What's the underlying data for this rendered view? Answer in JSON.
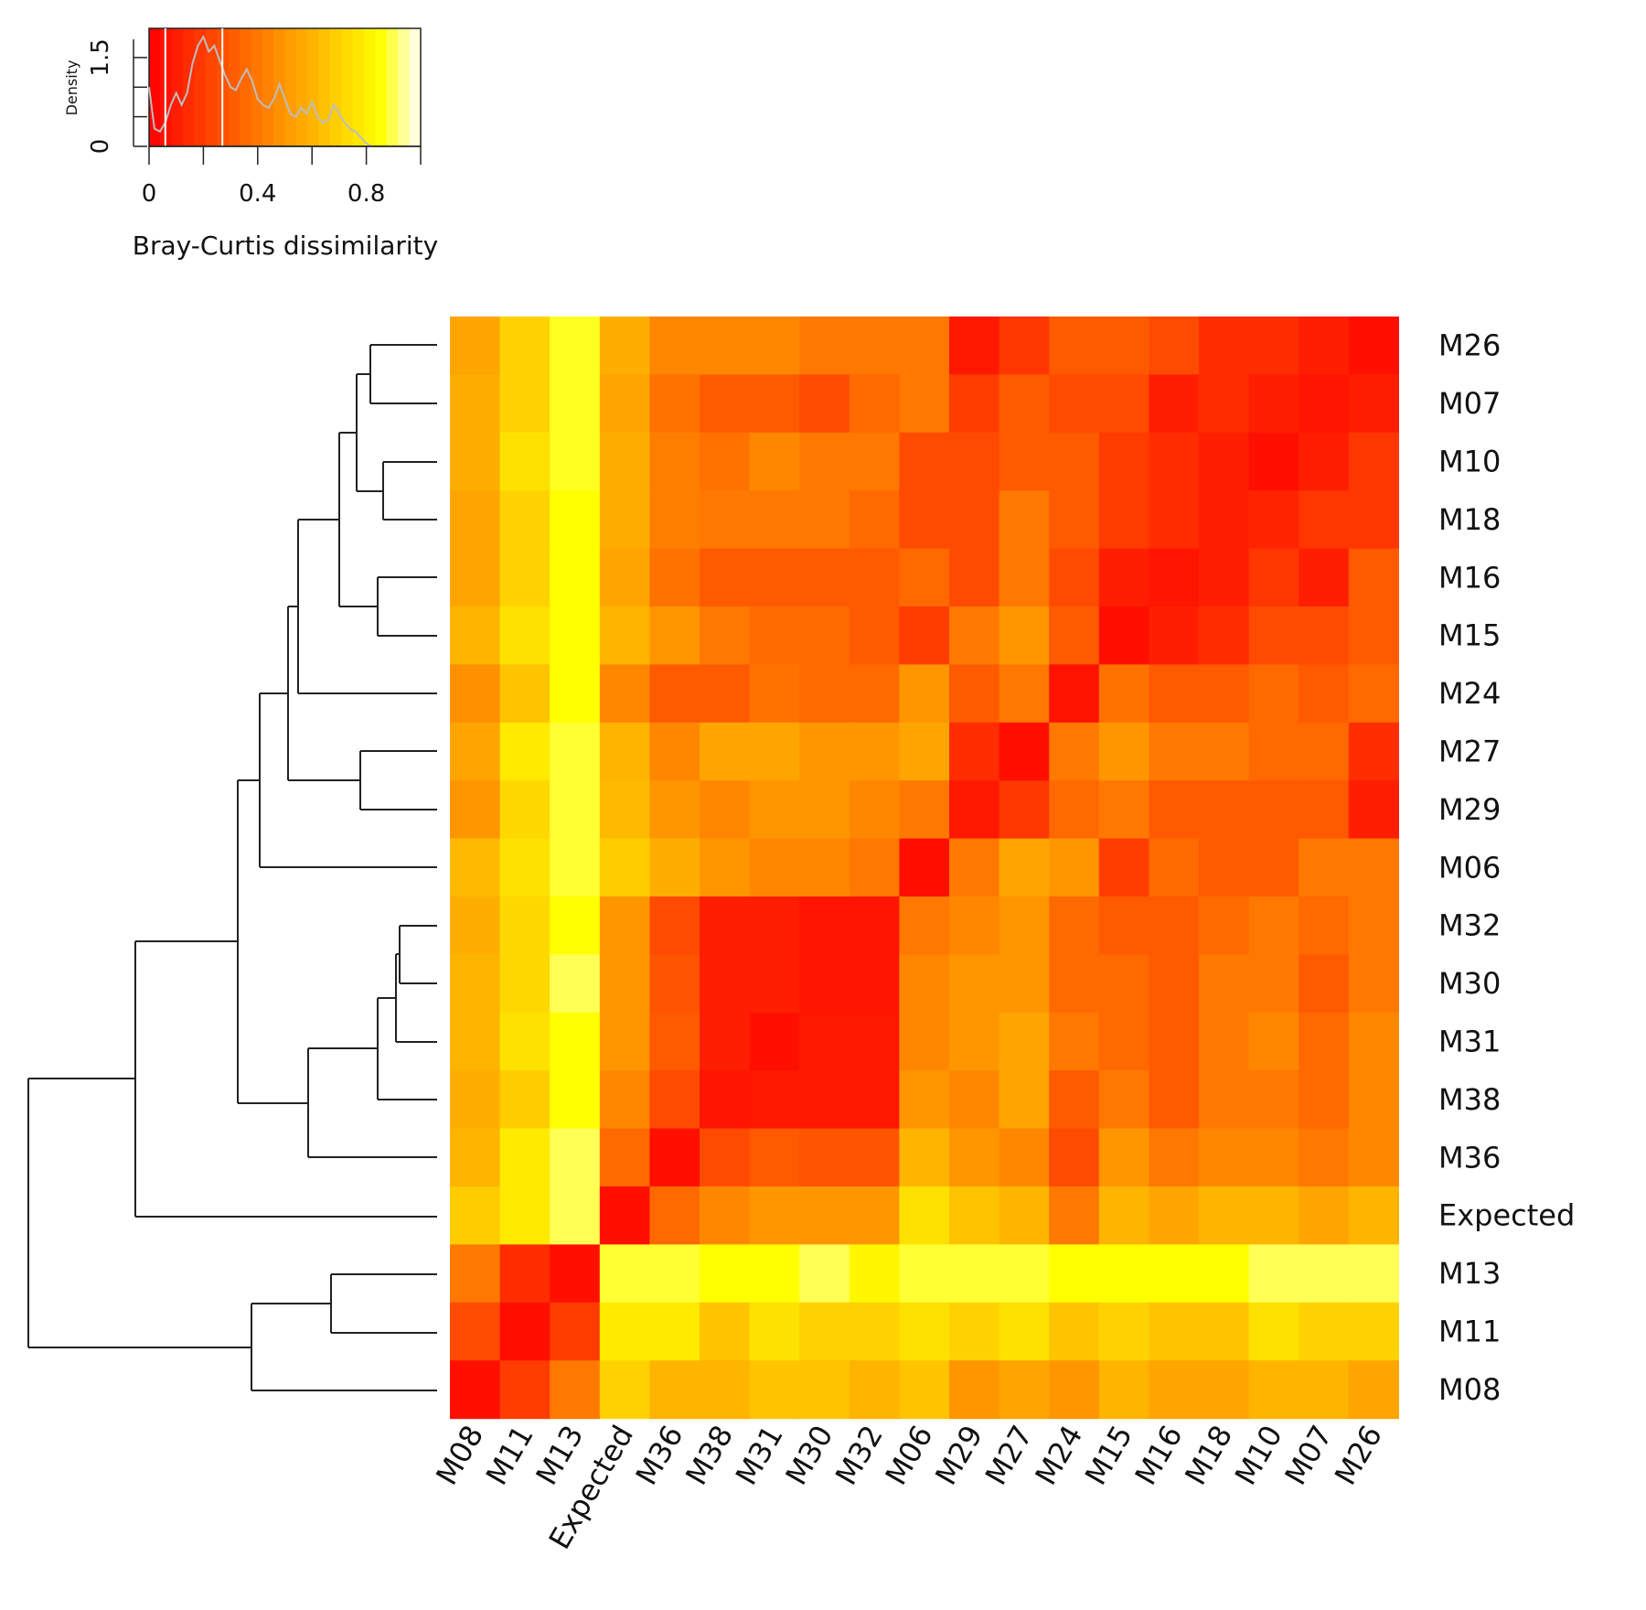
{
  "chart_data": {
    "type": "heatmap",
    "title": "",
    "color_key": {
      "label": "Bray-Curtis dissimilarity",
      "density_label": "Density",
      "ticks": [
        "0",
        "0.4",
        "0.8"
      ],
      "density_ticks": [
        "0",
        "1.5"
      ],
      "range": [
        0,
        1
      ],
      "palette": "heat (red to yellow to white)",
      "cut_lines": [
        0.06,
        0.27
      ]
    },
    "rows": [
      "M26",
      "M07",
      "M10",
      "M18",
      "M16",
      "M15",
      "M24",
      "M27",
      "M29",
      "M06",
      "M32",
      "M30",
      "M31",
      "M38",
      "M36",
      "Expected",
      "M13",
      "M11",
      "M08"
    ],
    "columns": [
      "M08",
      "M11",
      "M13",
      "Expected",
      "M36",
      "M38",
      "M31",
      "M30",
      "M32",
      "M06",
      "M29",
      "M27",
      "M24",
      "M15",
      "M16",
      "M18",
      "M10",
      "M07",
      "M26"
    ],
    "values": [
      [
        0.55,
        0.7,
        0.87,
        0.58,
        0.45,
        0.45,
        0.45,
        0.4,
        0.4,
        0.4,
        0.08,
        0.18,
        0.3,
        0.3,
        0.25,
        0.15,
        0.15,
        0.1,
        0.05
      ],
      [
        0.58,
        0.7,
        0.87,
        0.55,
        0.38,
        0.3,
        0.3,
        0.25,
        0.35,
        0.4,
        0.2,
        0.3,
        0.25,
        0.25,
        0.1,
        0.15,
        0.1,
        0.07,
        0.1
      ],
      [
        0.58,
        0.75,
        0.87,
        0.58,
        0.42,
        0.38,
        0.45,
        0.4,
        0.4,
        0.25,
        0.25,
        0.3,
        0.3,
        0.2,
        0.15,
        0.1,
        0.05,
        0.1,
        0.18
      ],
      [
        0.55,
        0.7,
        0.85,
        0.58,
        0.42,
        0.4,
        0.4,
        0.4,
        0.35,
        0.25,
        0.25,
        0.4,
        0.3,
        0.2,
        0.15,
        0.1,
        0.12,
        0.18,
        0.18
      ],
      [
        0.55,
        0.7,
        0.85,
        0.55,
        0.38,
        0.3,
        0.3,
        0.3,
        0.3,
        0.35,
        0.25,
        0.4,
        0.25,
        0.1,
        0.07,
        0.1,
        0.18,
        0.1,
        0.3
      ],
      [
        0.6,
        0.75,
        0.85,
        0.6,
        0.5,
        0.4,
        0.35,
        0.35,
        0.3,
        0.2,
        0.4,
        0.5,
        0.3,
        0.05,
        0.1,
        0.15,
        0.25,
        0.25,
        0.3
      ],
      [
        0.48,
        0.65,
        0.85,
        0.45,
        0.3,
        0.3,
        0.38,
        0.35,
        0.35,
        0.5,
        0.3,
        0.4,
        0.06,
        0.38,
        0.3,
        0.3,
        0.35,
        0.3,
        0.35
      ],
      [
        0.55,
        0.78,
        0.88,
        0.6,
        0.45,
        0.55,
        0.55,
        0.5,
        0.5,
        0.55,
        0.15,
        0.05,
        0.4,
        0.5,
        0.4,
        0.4,
        0.35,
        0.35,
        0.15
      ],
      [
        0.5,
        0.72,
        0.88,
        0.62,
        0.5,
        0.45,
        0.5,
        0.5,
        0.45,
        0.4,
        0.08,
        0.18,
        0.35,
        0.4,
        0.3,
        0.3,
        0.3,
        0.3,
        0.1
      ],
      [
        0.62,
        0.75,
        0.88,
        0.68,
        0.58,
        0.5,
        0.45,
        0.45,
        0.4,
        0.05,
        0.4,
        0.55,
        0.5,
        0.2,
        0.35,
        0.3,
        0.3,
        0.4,
        0.4
      ],
      [
        0.58,
        0.72,
        0.85,
        0.5,
        0.25,
        0.1,
        0.1,
        0.07,
        0.07,
        0.4,
        0.45,
        0.5,
        0.35,
        0.3,
        0.3,
        0.35,
        0.4,
        0.35,
        0.4
      ],
      [
        0.6,
        0.72,
        0.9,
        0.5,
        0.28,
        0.1,
        0.1,
        0.07,
        0.07,
        0.45,
        0.5,
        0.5,
        0.35,
        0.35,
        0.3,
        0.4,
        0.4,
        0.3,
        0.4
      ],
      [
        0.6,
        0.75,
        0.85,
        0.5,
        0.3,
        0.1,
        0.05,
        0.08,
        0.08,
        0.45,
        0.5,
        0.55,
        0.4,
        0.35,
        0.3,
        0.4,
        0.45,
        0.35,
        0.45
      ],
      [
        0.58,
        0.68,
        0.85,
        0.45,
        0.25,
        0.07,
        0.08,
        0.08,
        0.08,
        0.5,
        0.45,
        0.55,
        0.3,
        0.4,
        0.3,
        0.4,
        0.4,
        0.35,
        0.45
      ],
      [
        0.6,
        0.78,
        0.9,
        0.35,
        0.05,
        0.25,
        0.3,
        0.28,
        0.28,
        0.6,
        0.5,
        0.45,
        0.25,
        0.5,
        0.4,
        0.45,
        0.45,
        0.4,
        0.45
      ],
      [
        0.68,
        0.78,
        0.9,
        0.05,
        0.35,
        0.45,
        0.5,
        0.5,
        0.5,
        0.75,
        0.65,
        0.6,
        0.4,
        0.6,
        0.55,
        0.6,
        0.6,
        0.55,
        0.6
      ],
      [
        0.4,
        0.15,
        0.05,
        0.88,
        0.88,
        0.85,
        0.85,
        0.9,
        0.82,
        0.88,
        0.88,
        0.88,
        0.85,
        0.85,
        0.85,
        0.85,
        0.9,
        0.9,
        0.9
      ],
      [
        0.25,
        0.05,
        0.2,
        0.78,
        0.78,
        0.65,
        0.75,
        0.7,
        0.7,
        0.75,
        0.7,
        0.75,
        0.65,
        0.7,
        0.65,
        0.65,
        0.75,
        0.7,
        0.7
      ],
      [
        0.05,
        0.2,
        0.4,
        0.7,
        0.6,
        0.6,
        0.65,
        0.65,
        0.6,
        0.65,
        0.5,
        0.55,
        0.5,
        0.6,
        0.55,
        0.55,
        0.6,
        0.6,
        0.55
      ]
    ],
    "density_curve": [
      [
        0.0,
        1.0
      ],
      [
        0.02,
        0.3
      ],
      [
        0.04,
        0.25
      ],
      [
        0.06,
        0.4
      ],
      [
        0.08,
        0.7
      ],
      [
        0.1,
        0.9
      ],
      [
        0.12,
        0.7
      ],
      [
        0.14,
        0.9
      ],
      [
        0.16,
        1.4
      ],
      [
        0.18,
        1.7
      ],
      [
        0.2,
        1.85
      ],
      [
        0.22,
        1.6
      ],
      [
        0.24,
        1.7
      ],
      [
        0.26,
        1.45
      ],
      [
        0.28,
        1.2
      ],
      [
        0.3,
        1.0
      ],
      [
        0.32,
        0.95
      ],
      [
        0.34,
        1.15
      ],
      [
        0.36,
        1.3
      ],
      [
        0.38,
        1.1
      ],
      [
        0.4,
        0.8
      ],
      [
        0.42,
        0.7
      ],
      [
        0.44,
        0.65
      ],
      [
        0.46,
        0.8
      ],
      [
        0.48,
        1.05
      ],
      [
        0.5,
        0.8
      ],
      [
        0.52,
        0.55
      ],
      [
        0.54,
        0.5
      ],
      [
        0.56,
        0.65
      ],
      [
        0.58,
        0.55
      ],
      [
        0.6,
        0.75
      ],
      [
        0.62,
        0.5
      ],
      [
        0.64,
        0.4
      ],
      [
        0.66,
        0.45
      ],
      [
        0.68,
        0.7
      ],
      [
        0.7,
        0.55
      ],
      [
        0.72,
        0.4
      ],
      [
        0.74,
        0.3
      ],
      [
        0.76,
        0.25
      ],
      [
        0.78,
        0.15
      ],
      [
        0.8,
        0.05
      ],
      [
        0.82,
        0.0
      ]
    ],
    "density_range": [
      0,
      1.9
    ]
  }
}
